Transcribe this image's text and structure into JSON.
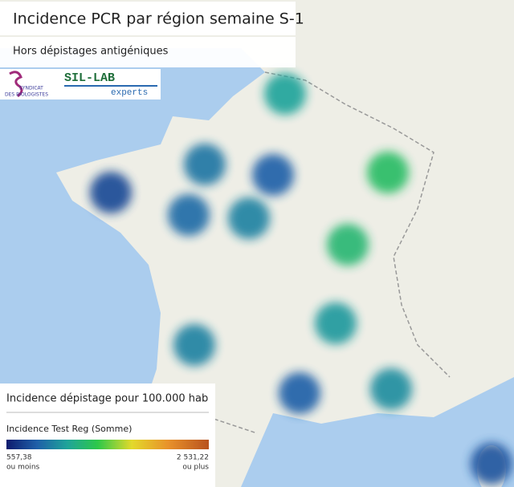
{
  "header": {
    "title": "Incidence PCR par région  semaine S-1",
    "subtitle": "Hors dépistages antigéniques"
  },
  "logos": {
    "syndicat_1": "SYNDICAT",
    "syndicat_2": "DES BIOLOGISTES",
    "sil_lab": "SIL-LAB",
    "experts": "experts"
  },
  "legend": {
    "title": "Incidence dépistage pour 100.000 hab",
    "measure": "Incidence Test Reg (Somme)",
    "min": {
      "value": 557.38,
      "label": "557,38"
    },
    "min_note": "ou moins",
    "max": {
      "value": 2531.22,
      "label": "2 531,22"
    },
    "max_note": "ou plus"
  },
  "bubbles": [
    1150,
    950,
    850,
    1350,
    750,
    900,
    1000,
    1300,
    1100,
    1000,
    850,
    1050,
    800
  ]
}
